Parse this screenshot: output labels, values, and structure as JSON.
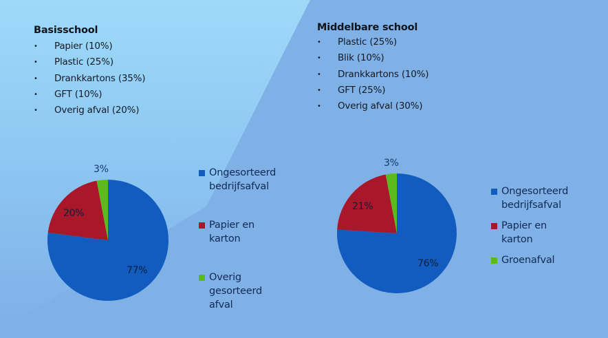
{
  "left": {
    "title": "Basisschool",
    "items": [
      "Papier (10%)",
      "Plastic (25%)",
      "Drankkartons (35%)",
      "GFT (10%)",
      "Overig afval (20%)"
    ]
  },
  "right": {
    "title": "Middelbare school",
    "items": [
      "Plastic (25%)",
      "Blik (10%)",
      "Drankkartons (10%)",
      "GFT (25%)",
      "Overig afval (30%)"
    ]
  },
  "bullet": "•",
  "colors": {
    "blue": "#135cbf",
    "red": "#a8172a",
    "green": "#5cb91e"
  },
  "chart_data": [
    {
      "type": "pie",
      "title": "Basisschool",
      "categories": [
        "Ongesorteerd bedrijfsafval",
        "Papier en karton",
        "Overig gesorteerd afval"
      ],
      "values": [
        77,
        20,
        3
      ],
      "labels": [
        "77%",
        "20%",
        "3%"
      ],
      "legend": [
        "Ongesorteerd",
        "bedrijfsafval",
        "Papier en",
        "karton",
        "Overig",
        "gesorteerd",
        "afval"
      ],
      "legend_position": "right"
    },
    {
      "type": "pie",
      "title": "Middelbare school",
      "categories": [
        "Ongesorteerd bedrijfsafval",
        "Papier en karton",
        "Groenafval"
      ],
      "values": [
        76,
        21,
        3
      ],
      "labels": [
        "76%",
        "21%",
        "3%"
      ],
      "legend": [
        "Ongesorteerd",
        "bedrijfsafval",
        "Papier en",
        "karton",
        "Groenafval"
      ],
      "legend_position": "right"
    }
  ]
}
